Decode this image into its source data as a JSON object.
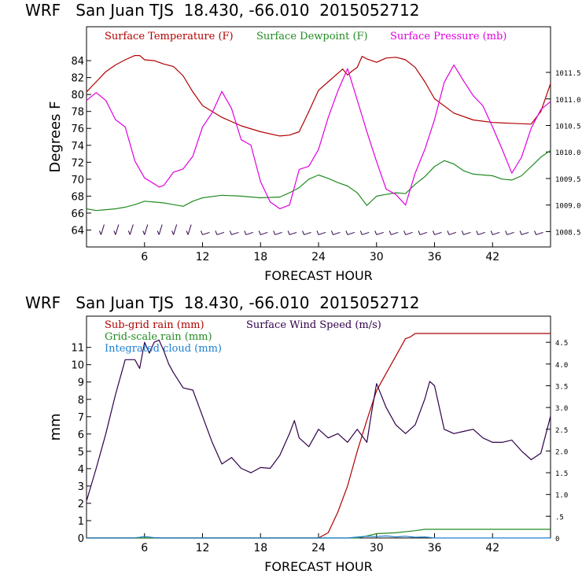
{
  "colors": {
    "temperature": "#b00000",
    "dewpoint": "#228b22",
    "pressure": "#e000e0",
    "wind": "#30004a",
    "subgrid": "#b00000",
    "gridscale": "#228b22",
    "cloud": "#1e7fd0",
    "axis": "#000000"
  },
  "chart_data": [
    {
      "type": "line",
      "title": "WRF   San Juan TJS  18.430, -66.010  2015052712",
      "xlabel": "FORECAST HOUR",
      "ylabel": "Degrees F",
      "xlim": [
        0,
        48
      ],
      "ylim": [
        62,
        88
      ],
      "y2lim": [
        1008.21,
        1012.36
      ],
      "x_ticks": [
        "6",
        "12",
        "18",
        "24",
        "30",
        "36",
        "42"
      ],
      "x_tick_values": [
        6,
        12,
        18,
        24,
        30,
        36,
        42
      ],
      "y_ticks": [
        "64",
        "66",
        "68",
        "70",
        "72",
        "74",
        "76",
        "78",
        "80",
        "82",
        "84"
      ],
      "y_tick_values": [
        64,
        66,
        68,
        70,
        72,
        74,
        76,
        78,
        80,
        82,
        84
      ],
      "y2_ticks": [
        "1008.5",
        "1009.0",
        "1009.5",
        "1010.0",
        "1010.5",
        "1011.0",
        "1011.5"
      ],
      "y2_tick_values": [
        1008.5,
        1009.0,
        1009.5,
        1010.0,
        1010.5,
        1011.0,
        1011.5
      ],
      "legend": [
        "Surface Temperature (F)",
        "Surface Dewpoint (F)",
        "Surface Pressure (mb)"
      ],
      "series": [
        {
          "name": "Surface Temperature (F)",
          "axis": "left",
          "x": [
            0,
            1,
            2,
            3,
            4,
            5,
            5.5,
            6,
            7,
            8,
            9,
            10,
            11,
            12,
            14,
            16,
            18,
            20,
            21,
            22,
            23,
            24,
            25,
            26,
            26.5,
            27,
            27.5,
            28,
            28.5,
            29,
            30,
            31,
            32,
            33,
            34,
            35,
            36,
            38,
            40,
            42,
            44,
            46,
            47,
            48
          ],
          "values": [
            80.3,
            81.5,
            82.7,
            83.5,
            84.1,
            84.6,
            84.6,
            84.1,
            84.0,
            83.6,
            83.3,
            82.2,
            80.3,
            78.7,
            77.3,
            76.3,
            75.6,
            75.1,
            75.2,
            75.6,
            78.0,
            80.5,
            81.5,
            82.5,
            83.0,
            82.3,
            82.8,
            83.2,
            84.5,
            84.2,
            83.8,
            84.3,
            84.4,
            84.1,
            83.2,
            81.5,
            79.5,
            77.8,
            77.0,
            76.7,
            76.6,
            76.5,
            78.0,
            81.3
          ]
        },
        {
          "name": "Surface Dewpoint (F)",
          "axis": "left",
          "x": [
            0,
            1,
            2,
            3,
            4,
            5,
            6,
            7,
            8,
            9,
            10,
            11,
            12,
            14,
            16,
            18,
            20,
            21,
            22,
            23,
            24,
            25,
            26,
            27,
            28,
            29,
            30,
            31,
            32,
            33,
            34,
            35,
            36,
            37,
            38,
            39,
            40,
            42,
            43,
            44,
            45,
            46,
            47,
            48
          ],
          "values": [
            66.5,
            66.3,
            66.4,
            66.5,
            66.7,
            67.0,
            67.4,
            67.3,
            67.2,
            67.0,
            66.8,
            67.4,
            67.8,
            68.1,
            68.0,
            67.8,
            67.9,
            68.4,
            69.0,
            70.0,
            70.5,
            70.1,
            69.6,
            69.2,
            68.4,
            66.9,
            68.0,
            68.2,
            68.4,
            68.3,
            69.4,
            70.3,
            71.5,
            72.2,
            71.8,
            71.0,
            70.6,
            70.4,
            70.0,
            69.9,
            70.4,
            71.5,
            72.6,
            73.4
          ]
        },
        {
          "name": "Surface Pressure (mb)",
          "axis": "right",
          "x": [
            0,
            1,
            2,
            3,
            4,
            5,
            6,
            7,
            7.5,
            8,
            9,
            10,
            11,
            12,
            13,
            14,
            15,
            16,
            17,
            18,
            19,
            20,
            21,
            22,
            23,
            24,
            25,
            26,
            27,
            28,
            29,
            30,
            31,
            32,
            33,
            34,
            35,
            36,
            37,
            38,
            39,
            40,
            41,
            42,
            43,
            44,
            45,
            46,
            47,
            48
          ],
          "values": [
            1010.97,
            1011.12,
            1010.97,
            1010.61,
            1010.47,
            1009.83,
            1009.51,
            1009.4,
            1009.34,
            1009.37,
            1009.62,
            1009.68,
            1009.92,
            1010.47,
            1010.74,
            1011.14,
            1010.82,
            1010.23,
            1010.13,
            1009.44,
            1009.06,
            1008.93,
            1009.0,
            1009.67,
            1009.73,
            1010.05,
            1010.65,
            1011.15,
            1011.57,
            1010.98,
            1010.38,
            1009.82,
            1009.3,
            1009.2,
            1009.0,
            1009.6,
            1010.05,
            1010.61,
            1011.31,
            1011.64,
            1011.34,
            1011.06,
            1010.87,
            1010.47,
            1010.05,
            1009.6,
            1009.9,
            1010.45,
            1010.8,
            1010.95
          ]
        }
      ],
      "wind_barbs": {
        "row_value": 64,
        "x_start": 1.5,
        "x_end": 47.5,
        "step": 1.5
      }
    },
    {
      "type": "line",
      "title": "WRF   San Juan TJS  18.430, -66.010  2015052712",
      "xlabel": "FORECAST HOUR",
      "ylabel": "mm",
      "xlim": [
        0,
        48
      ],
      "ylim": [
        0,
        12.8
      ],
      "y2lim": [
        0,
        5.1
      ],
      "x_ticks": [
        "6",
        "12",
        "18",
        "24",
        "30",
        "36",
        "42"
      ],
      "x_tick_values": [
        6,
        12,
        18,
        24,
        30,
        36,
        42
      ],
      "y_ticks": [
        "0",
        "1",
        "2",
        "3",
        "4",
        "5",
        "6",
        "7",
        "8",
        "9",
        "10",
        "11"
      ],
      "y_tick_values": [
        0,
        1,
        2,
        3,
        4,
        5,
        6,
        7,
        8,
        9,
        10,
        11
      ],
      "y2_ticks": [
        "0",
        ".5",
        "1.0",
        "1.5",
        "2.0",
        "2.5",
        "3.0",
        "3.5",
        "4.0",
        "4.5"
      ],
      "y2_tick_values": [
        0,
        0.5,
        1.0,
        1.5,
        2.0,
        2.5,
        3.0,
        3.5,
        4.0,
        4.5
      ],
      "legend": [
        "Sub-grid rain (mm)",
        "Surface Wind Speed (m/s)",
        "Grid-scale rain (mm)",
        "Integrated cloud (mm)"
      ],
      "series": [
        {
          "name": "Sub-grid rain (mm)",
          "axis": "left",
          "x": [
            0,
            24,
            25,
            26,
            27,
            28,
            29,
            30,
            31,
            32,
            33,
            33.5,
            34,
            48
          ],
          "values": [
            0,
            0,
            0.3,
            1.5,
            3.0,
            5.0,
            6.8,
            8.5,
            9.5,
            10.5,
            11.5,
            11.6,
            11.8,
            11.8
          ]
        },
        {
          "name": "Surface Wind Speed (m/s)",
          "axis": "right",
          "x": [
            0,
            1,
            2,
            3,
            4,
            5,
            5.5,
            6,
            6.5,
            7,
            7.5,
            8,
            8.5,
            9,
            10,
            11,
            12,
            13,
            14,
            15,
            16,
            17,
            18,
            19,
            20,
            21,
            21.5,
            22,
            23,
            24,
            25,
            26,
            27,
            28,
            29,
            29.5,
            30,
            31,
            32,
            33,
            34,
            35,
            35.5,
            36,
            37,
            38,
            39,
            40,
            41,
            42,
            43,
            44,
            45,
            46,
            47,
            48
          ],
          "values": [
            0.85,
            1.6,
            2.4,
            3.3,
            4.1,
            4.1,
            3.9,
            4.5,
            4.25,
            4.5,
            4.55,
            4.3,
            4.0,
            3.8,
            3.45,
            3.4,
            2.8,
            2.2,
            1.7,
            1.85,
            1.6,
            1.5,
            1.62,
            1.6,
            1.9,
            2.4,
            2.7,
            2.3,
            2.1,
            2.5,
            2.3,
            2.4,
            2.2,
            2.5,
            2.2,
            2.9,
            3.55,
            3.0,
            2.6,
            2.4,
            2.6,
            3.2,
            3.6,
            3.5,
            2.5,
            2.4,
            2.45,
            2.5,
            2.3,
            2.2,
            2.2,
            2.25,
            2.0,
            1.8,
            1.95,
            2.8
          ]
        },
        {
          "name": "Grid-scale rain (mm)",
          "axis": "left",
          "x": [
            0,
            28,
            29,
            30,
            32,
            34,
            35,
            48
          ],
          "values": [
            0,
            0,
            0.12,
            0.25,
            0.3,
            0.42,
            0.5,
            0.5
          ]
        },
        {
          "name": "Integrated cloud (mm)",
          "axis": "left",
          "x": [
            0,
            5,
            6,
            7,
            8,
            10,
            27,
            28,
            29,
            30,
            31,
            32,
            33,
            34,
            35,
            36,
            48
          ],
          "values": [
            0,
            0,
            0.08,
            0.02,
            0,
            0,
            0,
            0.05,
            0.1,
            0.08,
            0.12,
            0.06,
            0.1,
            0.04,
            0.06,
            0,
            0
          ]
        }
      ]
    }
  ]
}
